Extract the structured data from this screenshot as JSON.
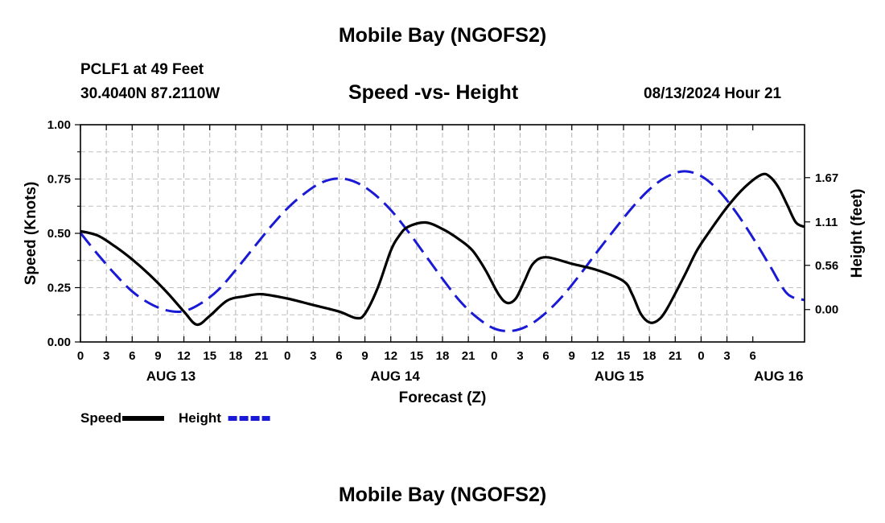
{
  "header": {
    "title": "Mobile Bay (NGOFS2)",
    "station": "PCLF1 at 49 Feet",
    "coords": "30.4040N  87.2110W",
    "subtitle": "Speed -vs- Height",
    "datetime": "08/13/2024 Hour 21"
  },
  "footer": {
    "title": "Mobile Bay (NGOFS2)"
  },
  "chart_data": {
    "type": "line",
    "title": "Speed -vs- Height",
    "xlabel": "Forecast (Z)",
    "ylabel_left": "Speed (Knots)",
    "ylabel_right": "Height (feet)",
    "x_range_hours": [
      0,
      84
    ],
    "x_tick_step_hours": 3,
    "x_tick_labels": [
      "0",
      "3",
      "6",
      "9",
      "12",
      "15",
      "18",
      "21",
      "0",
      "3",
      "6",
      "9",
      "12",
      "15",
      "18",
      "21",
      "0",
      "3",
      "6",
      "9",
      "12",
      "15",
      "18",
      "21",
      "0",
      "3",
      "6"
    ],
    "date_labels": [
      {
        "label": "AUG 13",
        "hour": 10.5
      },
      {
        "label": "AUG 14",
        "hour": 36.5
      },
      {
        "label": "AUG 15",
        "hour": 62.5
      },
      {
        "label": "AUG 16",
        "hour": 81
      }
    ],
    "left_axis": {
      "range": [
        0,
        1
      ],
      "ticks": [
        "0.00",
        "0.25",
        "0.50",
        "0.75",
        "1.00"
      ],
      "tick_values": [
        0,
        0.25,
        0.5,
        0.75,
        1.0
      ]
    },
    "right_axis": {
      "range": [
        -0.41,
        2.34
      ],
      "ticks": [
        "0.00",
        "0.56",
        "1.11",
        "1.67"
      ],
      "tick_values": [
        0,
        0.56,
        1.11,
        1.67
      ]
    },
    "grid": true,
    "series": [
      {
        "name": "Speed",
        "axis": "left",
        "color": "#000000",
        "dash": "solid",
        "points": [
          [
            0,
            0.51
          ],
          [
            2,
            0.49
          ],
          [
            4,
            0.44
          ],
          [
            6,
            0.38
          ],
          [
            8,
            0.31
          ],
          [
            10,
            0.23
          ],
          [
            12,
            0.14
          ],
          [
            13.5,
            0.08
          ],
          [
            15,
            0.12
          ],
          [
            17,
            0.19
          ],
          [
            19,
            0.21
          ],
          [
            21,
            0.22
          ],
          [
            24,
            0.2
          ],
          [
            27,
            0.17
          ],
          [
            30,
            0.14
          ],
          [
            32,
            0.11
          ],
          [
            33,
            0.13
          ],
          [
            34.5,
            0.25
          ],
          [
            36,
            0.42
          ],
          [
            37,
            0.49
          ],
          [
            38,
            0.53
          ],
          [
            40,
            0.55
          ],
          [
            42,
            0.52
          ],
          [
            44,
            0.47
          ],
          [
            45.5,
            0.42
          ],
          [
            47,
            0.33
          ],
          [
            48.5,
            0.22
          ],
          [
            49.5,
            0.18
          ],
          [
            50.5,
            0.2
          ],
          [
            51.5,
            0.28
          ],
          [
            52.5,
            0.36
          ],
          [
            54,
            0.39
          ],
          [
            57,
            0.36
          ],
          [
            60,
            0.33
          ],
          [
            63,
            0.28
          ],
          [
            64,
            0.22
          ],
          [
            65,
            0.13
          ],
          [
            66,
            0.09
          ],
          [
            67,
            0.1
          ],
          [
            68,
            0.15
          ],
          [
            70,
            0.3
          ],
          [
            71.5,
            0.42
          ],
          [
            73,
            0.51
          ],
          [
            75,
            0.62
          ],
          [
            77,
            0.71
          ],
          [
            79,
            0.77
          ],
          [
            80,
            0.76
          ],
          [
            81,
            0.71
          ],
          [
            82,
            0.63
          ],
          [
            83,
            0.55
          ],
          [
            84,
            0.53
          ]
        ]
      },
      {
        "name": "Height",
        "axis": "right",
        "color": "#1a1ad6",
        "dash": "dashed",
        "points": [
          [
            0,
            0.97
          ],
          [
            2,
            0.7
          ],
          [
            4,
            0.45
          ],
          [
            6,
            0.23
          ],
          [
            8,
            0.08
          ],
          [
            10,
            -0.01
          ],
          [
            12,
            -0.02
          ],
          [
            14,
            0.08
          ],
          [
            16,
            0.25
          ],
          [
            18,
            0.5
          ],
          [
            20,
            0.77
          ],
          [
            22,
            1.04
          ],
          [
            24,
            1.28
          ],
          [
            26,
            1.47
          ],
          [
            28,
            1.61
          ],
          [
            30,
            1.66
          ],
          [
            32,
            1.61
          ],
          [
            34,
            1.47
          ],
          [
            36,
            1.26
          ],
          [
            38,
            0.99
          ],
          [
            40,
            0.69
          ],
          [
            42,
            0.39
          ],
          [
            44,
            0.11
          ],
          [
            46,
            -0.1
          ],
          [
            48,
            -0.24
          ],
          [
            50,
            -0.27
          ],
          [
            52,
            -0.2
          ],
          [
            54,
            -0.04
          ],
          [
            56,
            0.18
          ],
          [
            58,
            0.45
          ],
          [
            60,
            0.74
          ],
          [
            62,
            1.02
          ],
          [
            64,
            1.29
          ],
          [
            66,
            1.52
          ],
          [
            68,
            1.68
          ],
          [
            70,
            1.75
          ],
          [
            72,
            1.69
          ],
          [
            74,
            1.51
          ],
          [
            76,
            1.24
          ],
          [
            78,
            0.91
          ],
          [
            80,
            0.55
          ],
          [
            82,
            0.2
          ],
          [
            84,
            0.12
          ]
        ]
      }
    ],
    "legend": [
      {
        "label": "Speed",
        "color": "#000000",
        "dash": "solid"
      },
      {
        "label": "Height",
        "color": "#1a1ad6",
        "dash": "dashed"
      }
    ]
  }
}
